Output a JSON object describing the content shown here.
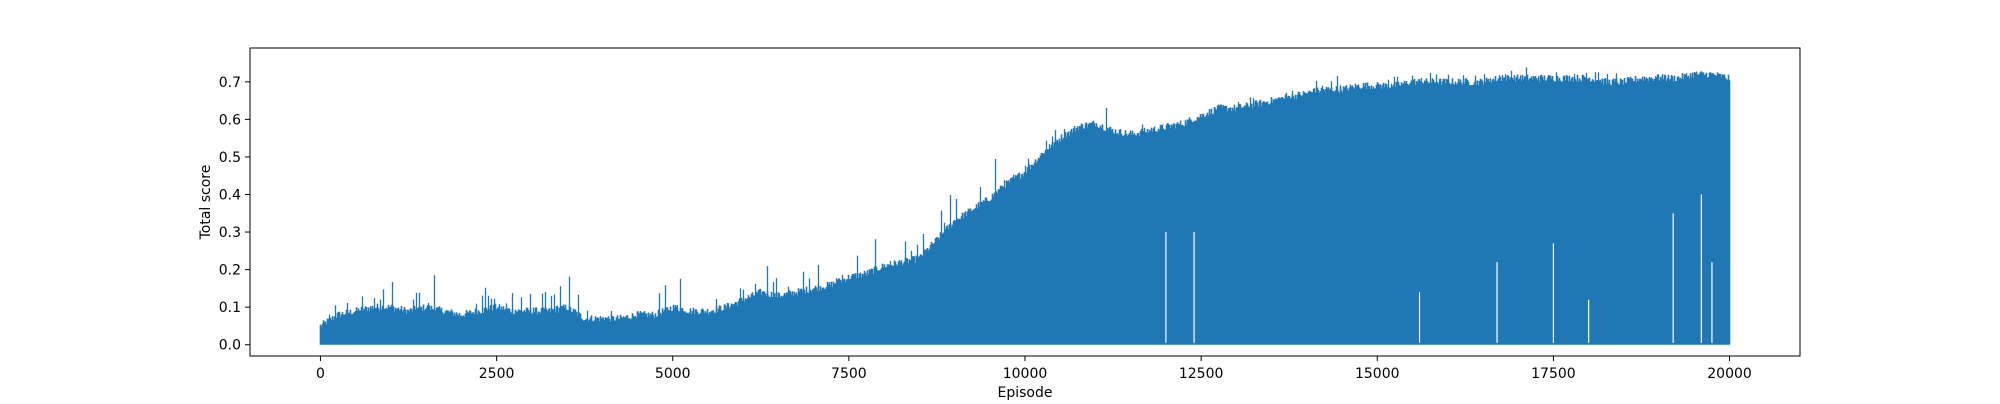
{
  "chart_data": {
    "type": "line",
    "title": "",
    "xlabel": "Episode",
    "ylabel": "Total score",
    "xlim": [
      -1000,
      21000
    ],
    "ylim": [
      -0.03,
      0.79
    ],
    "x_ticks": [
      0,
      2500,
      5000,
      7500,
      10000,
      12500,
      15000,
      17500,
      20000
    ],
    "x_tick_labels": [
      "0",
      "2500",
      "5000",
      "7500",
      "10000",
      "12500",
      "15000",
      "17500",
      "20000"
    ],
    "y_ticks": [
      0.0,
      0.1,
      0.2,
      0.3,
      0.4,
      0.5,
      0.6,
      0.7
    ],
    "y_tick_labels": [
      "0.0",
      "0.1",
      "0.2",
      "0.3",
      "0.4",
      "0.5",
      "0.6",
      "0.7"
    ],
    "grid": false,
    "legend": "none",
    "series_color": "#1f77b4",
    "series": [
      {
        "x_range": [
          0,
          20000
        ],
        "sample_step": 250,
        "upper_envelope": [
          0.09,
          0.12,
          0.14,
          0.19,
          0.2,
          0.14,
          0.27,
          0.13,
          0.12,
          0.15,
          0.16,
          0.14,
          0.15,
          0.14,
          0.23,
          0.1,
          0.09,
          0.1,
          0.14,
          0.13,
          0.25,
          0.13,
          0.12,
          0.15,
          0.19,
          0.29,
          0.18,
          0.17,
          0.24,
          0.18,
          0.32,
          0.27,
          0.3,
          0.28,
          0.27,
          0.4,
          0.43,
          0.44,
          0.5,
          0.49,
          0.5,
          0.6,
          0.64,
          0.63,
          0.67,
          0.62,
          0.6,
          0.62,
          0.6,
          0.62,
          0.63,
          0.68,
          0.65,
          0.67,
          0.67,
          0.69,
          0.72,
          0.71,
          0.72,
          0.71,
          0.72,
          0.72,
          0.74,
          0.73,
          0.74,
          0.74,
          0.73,
          0.74,
          0.75,
          0.74,
          0.74,
          0.73,
          0.74,
          0.73,
          0.72,
          0.72,
          0.73,
          0.73,
          0.74,
          0.73,
          0.72
        ],
        "typical_high": [
          0.04,
          0.07,
          0.08,
          0.09,
          0.09,
          0.08,
          0.09,
          0.08,
          0.07,
          0.08,
          0.09,
          0.08,
          0.08,
          0.08,
          0.09,
          0.06,
          0.06,
          0.06,
          0.07,
          0.07,
          0.09,
          0.08,
          0.08,
          0.09,
          0.11,
          0.13,
          0.12,
          0.13,
          0.14,
          0.15,
          0.17,
          0.18,
          0.2,
          0.21,
          0.22,
          0.27,
          0.32,
          0.35,
          0.38,
          0.42,
          0.45,
          0.5,
          0.54,
          0.57,
          0.58,
          0.56,
          0.55,
          0.56,
          0.57,
          0.58,
          0.6,
          0.62,
          0.62,
          0.63,
          0.64,
          0.65,
          0.66,
          0.67,
          0.67,
          0.68,
          0.68,
          0.68,
          0.69,
          0.69,
          0.69,
          0.69,
          0.69,
          0.7,
          0.7,
          0.7,
          0.7,
          0.7,
          0.7,
          0.69,
          0.69,
          0.7,
          0.7,
          0.7,
          0.71,
          0.71,
          0.7
        ],
        "dips": [
          {
            "x": 12000,
            "y": 0.3
          },
          {
            "x": 12400,
            "y": 0.3
          },
          {
            "x": 15600,
            "y": 0.14
          },
          {
            "x": 16700,
            "y": 0.22
          },
          {
            "x": 17500,
            "y": 0.27
          },
          {
            "x": 18000,
            "y": 0.12
          },
          {
            "x": 19200,
            "y": 0.35
          },
          {
            "x": 19600,
            "y": 0.4
          },
          {
            "x": 19750,
            "y": 0.22
          }
        ]
      }
    ]
  }
}
